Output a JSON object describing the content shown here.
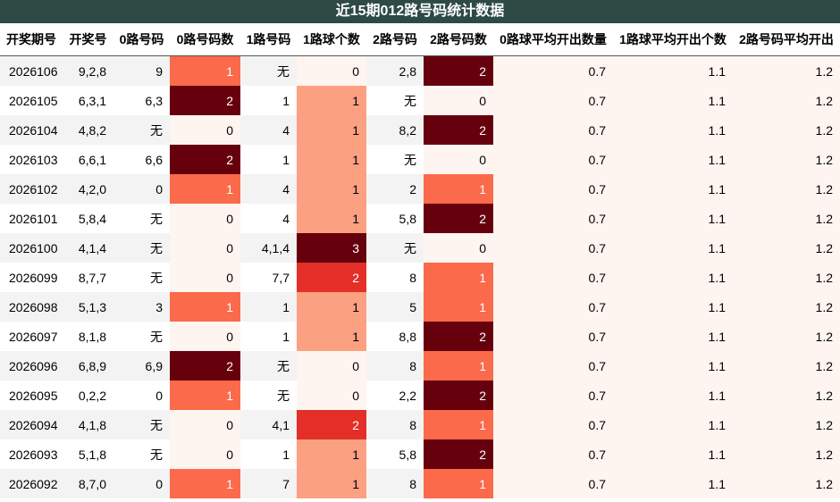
{
  "title": "近15期012路号码统计数据",
  "table": {
    "headers": [
      "开奖期号",
      "开奖号",
      "0路号码",
      "0路号码数",
      "1路号码",
      "1路球个数",
      "2路号码",
      "2路号码数",
      "0路球平均开出数量",
      "1路球平均开出个数",
      "2路号码平均开出"
    ],
    "rows": [
      [
        2026106,
        "9,2,8",
        9,
        1,
        "无",
        0,
        "2,8",
        2,
        0.7,
        1.1,
        1.2
      ],
      [
        2026105,
        "6,3,1",
        "6,3",
        2,
        1,
        1,
        "无",
        0,
        0.7,
        1.1,
        1.2
      ],
      [
        2026104,
        "4,8,2",
        "无",
        0,
        4,
        1,
        "8,2",
        2,
        0.7,
        1.1,
        1.2
      ],
      [
        2026103,
        "6,6,1",
        "6,6",
        2,
        1,
        1,
        "无",
        0,
        0.7,
        1.1,
        1.2
      ],
      [
        2026102,
        "4,2,0",
        0,
        1,
        4,
        1,
        2,
        1,
        0.7,
        1.1,
        1.2
      ],
      [
        2026101,
        "5,8,4",
        "无",
        0,
        4,
        1,
        "5,8",
        2,
        0.7,
        1.1,
        1.2
      ],
      [
        2026100,
        "4,1,4",
        "无",
        0,
        "4,1,4",
        3,
        "无",
        0,
        0.7,
        1.1,
        1.2
      ],
      [
        2026099,
        "8,7,7",
        "无",
        0,
        "7,7",
        2,
        8,
        1,
        0.7,
        1.1,
        1.2
      ],
      [
        2026098,
        "5,1,3",
        3,
        1,
        1,
        1,
        5,
        1,
        0.7,
        1.1,
        1.2
      ],
      [
        2026097,
        "8,1,8",
        "无",
        0,
        1,
        1,
        "8,8",
        2,
        0.7,
        1.1,
        1.2
      ],
      [
        2026096,
        "6,8,9",
        "6,9",
        2,
        "无",
        0,
        8,
        1,
        0.7,
        1.1,
        1.2
      ],
      [
        2026095,
        "0,2,2",
        0,
        1,
        "无",
        0,
        "2,2",
        2,
        0.7,
        1.1,
        1.2
      ],
      [
        2026094,
        "4,1,8",
        "无",
        0,
        "4,1",
        2,
        8,
        1,
        0.7,
        1.1,
        1.2
      ],
      [
        2026093,
        "5,1,8",
        "无",
        0,
        1,
        1,
        "5,8",
        2,
        0.7,
        1.1,
        1.2
      ],
      [
        2026092,
        "8,7,0",
        0,
        1,
        7,
        1,
        8,
        1,
        0.7,
        1.1,
        1.2
      ]
    ]
  }
}
